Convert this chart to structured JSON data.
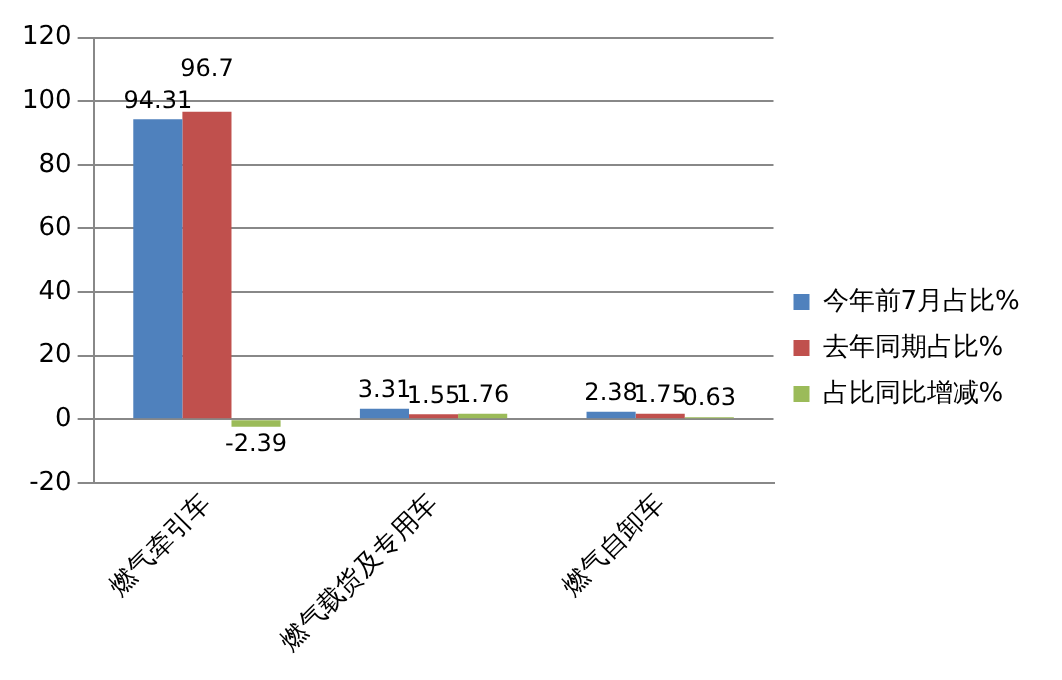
{
  "chart_data": {
    "type": "bar",
    "categories": [
      "燃气牵引车",
      "燃气载货及专用车",
      "燃气自卸车"
    ],
    "series": [
      {
        "name": "今年前7月占比%",
        "color": "#4f81bd",
        "values": [
          94.31,
          3.31,
          2.38
        ]
      },
      {
        "name": "去年同期占比%",
        "color": "#c0504d",
        "values": [
          96.7,
          1.55,
          1.75
        ]
      },
      {
        "name": "占比同比增减%",
        "color": "#9bbb59",
        "values": [
          -2.39,
          1.76,
          0.63
        ]
      }
    ],
    "ylim": [
      -20,
      120
    ],
    "yticks": [
      -20,
      0,
      20,
      40,
      60,
      80,
      100,
      120
    ],
    "grid": "y",
    "legend": "right",
    "data_labels": true
  }
}
